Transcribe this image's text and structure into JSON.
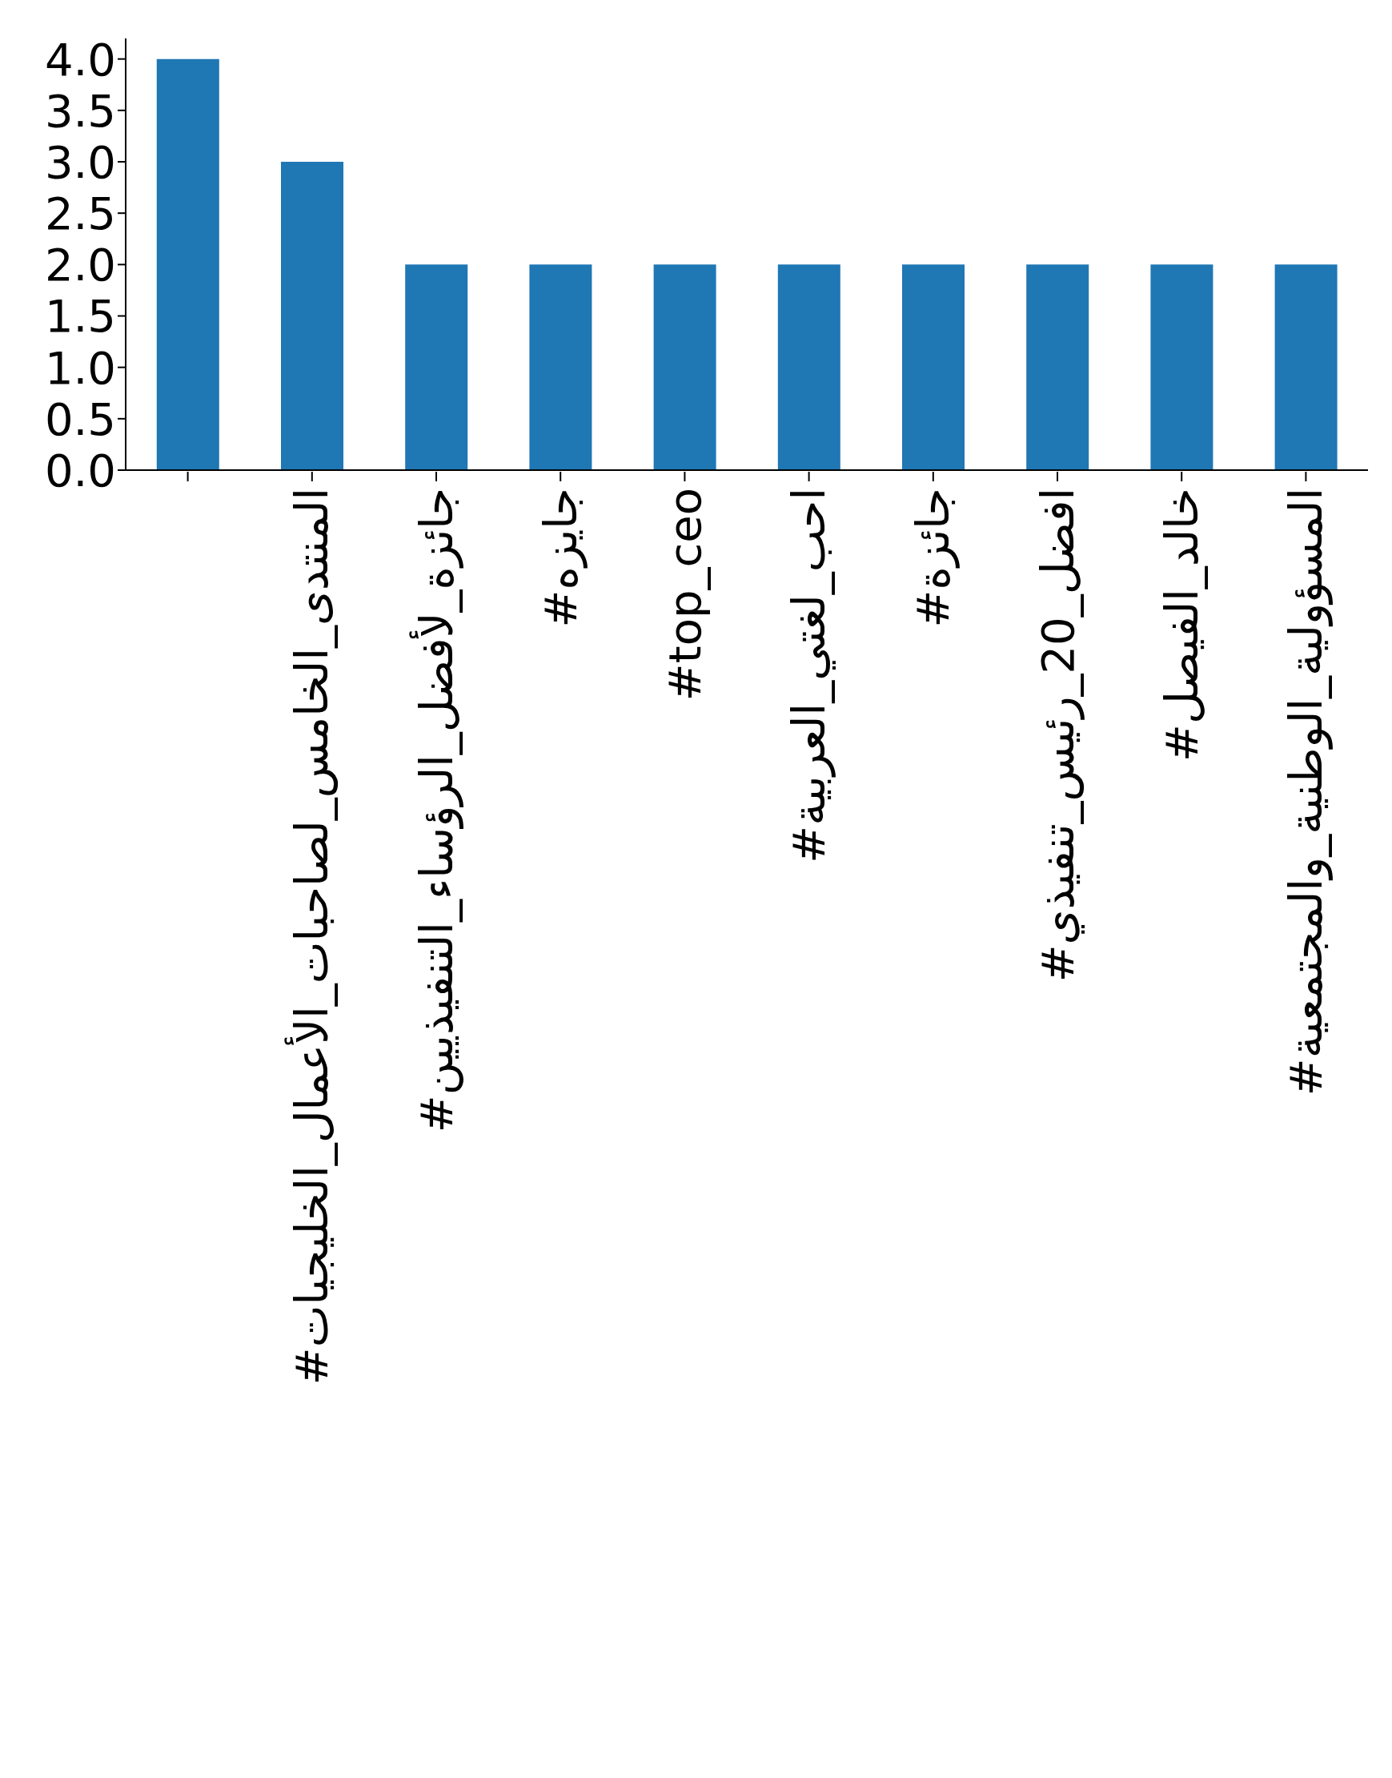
{
  "chart_data": {
    "type": "bar",
    "categories": [
      null,
      "#المنتدى_الخامس_لصاحبات_الأعمال_الخليجيات",
      "#جائزة_لأفضل_الرؤساء_التنفيذيين",
      "#جايزه",
      "#top_ceo",
      "#احب_لغتي_العربية",
      "#جائزة",
      "#افضل_20_رئيس_تنفيذي",
      "#خالد_الفيصل",
      "#المسؤولية_الوطنية_والمجتمعية"
    ],
    "values": [
      4,
      3,
      2,
      2,
      2,
      2,
      2,
      2,
      2,
      2
    ],
    "color": "#1f77b4",
    "ylim": [
      0,
      4.2
    ],
    "yticks": [
      {
        "value": 0,
        "label": "0.0"
      },
      {
        "value": 0.5,
        "label": "0.5"
      },
      {
        "value": 1,
        "label": "1.0"
      },
      {
        "value": 1.5,
        "label": "1.5"
      },
      {
        "value": 2,
        "label": "2.0"
      },
      {
        "value": 2.5,
        "label": "2.5"
      },
      {
        "value": 3,
        "label": "3.0"
      },
      {
        "value": 3.5,
        "label": "3.5"
      },
      {
        "value": 4,
        "label": "4.0"
      }
    ],
    "grid": false,
    "legend": false
  }
}
